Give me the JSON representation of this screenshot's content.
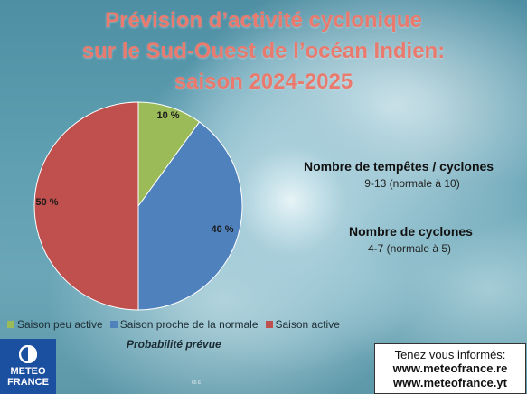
{
  "title_lines": [
    "Prévision d’activité cyclonique",
    "sur le Sud-Ouest de l’océan Indien:",
    "saison 2024-2025"
  ],
  "chart_data": {
    "type": "pie",
    "title": "Prévision d’activité cyclonique sur le Sud-Ouest de l’océan Indien: saison 2024-2025",
    "xlabel": "Probabilité prévue",
    "legend_position": "bottom",
    "categories": [
      "Saison peu active",
      "Saison proche de la normale",
      "Saison active"
    ],
    "values": [
      10,
      40,
      50
    ],
    "value_labels": [
      "10 %",
      "40 %",
      "50 %"
    ],
    "colors": [
      "#9bbb59",
      "#4f81bd",
      "#c0504d"
    ]
  },
  "legend": [
    "Saison peu active",
    "Saison proche de la normale",
    "Saison active"
  ],
  "probability_label": "Probabilité prévue",
  "storms": {
    "label": "Nombre de tempêtes / cyclones",
    "value": "9-13 (normale à 10)"
  },
  "cyclones": {
    "label": "Nombre de cyclones",
    "value": "4-7 (normale à 5)"
  },
  "logo": {
    "line1": "METEO",
    "line2": "FRANCE"
  },
  "info": {
    "heading": "Tenez vous informés:",
    "url1": "www.meteofrance.re",
    "url2": "www.meteofrance.yt"
  },
  "map_credit": "65 E"
}
